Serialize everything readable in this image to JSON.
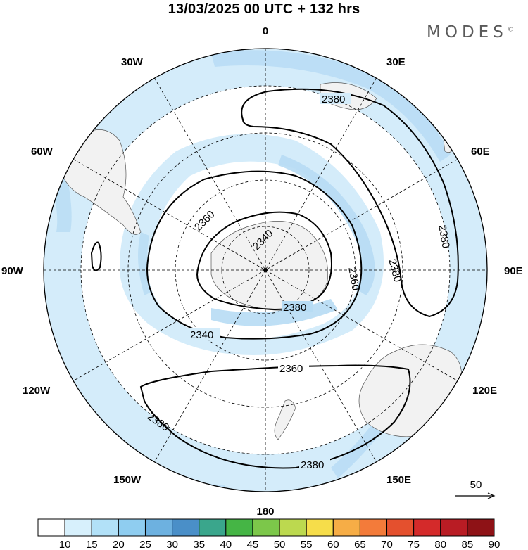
{
  "title": "13/03/2025  00 UTC  + 132 hrs",
  "brand": "MODES",
  "brand_mark": "©",
  "longitude_labels": {
    "top": "0",
    "bottom": "180",
    "left": "90W",
    "right": "90E",
    "nw1": "30W",
    "nw2": "60W",
    "ne1": "30E",
    "ne2": "60E",
    "sw1": "120W",
    "sw2": "150W",
    "se1": "120E",
    "se2": "150E"
  },
  "contour_labels": [
    "2380",
    "2380",
    "2380",
    "2360",
    "2340",
    "2360",
    "2380",
    "2340",
    "2360",
    "2380",
    "2380"
  ],
  "reference_vector": {
    "value": "50"
  },
  "colorbar": {
    "labels": [
      "10",
      "15",
      "20",
      "25",
      "30",
      "35",
      "40",
      "45",
      "50",
      "55",
      "60",
      "65",
      "70",
      "75",
      "80",
      "85",
      "90"
    ],
    "colors": [
      "#ffffff",
      "#d7f0fc",
      "#b2e1f8",
      "#8fcdf0",
      "#6db1e0",
      "#4a8fc8",
      "#3aa68c",
      "#45b545",
      "#7cc74a",
      "#bcd94f",
      "#f6dd4a",
      "#f6ad46",
      "#f37b3a",
      "#e4502e",
      "#d42a2a",
      "#b91c24",
      "#8e1216"
    ]
  },
  "colors": {
    "wind_light": "#d4ecfa",
    "wind_medium": "#b7dcf4",
    "land": "#f2f2f2",
    "contour": "#000000"
  }
}
